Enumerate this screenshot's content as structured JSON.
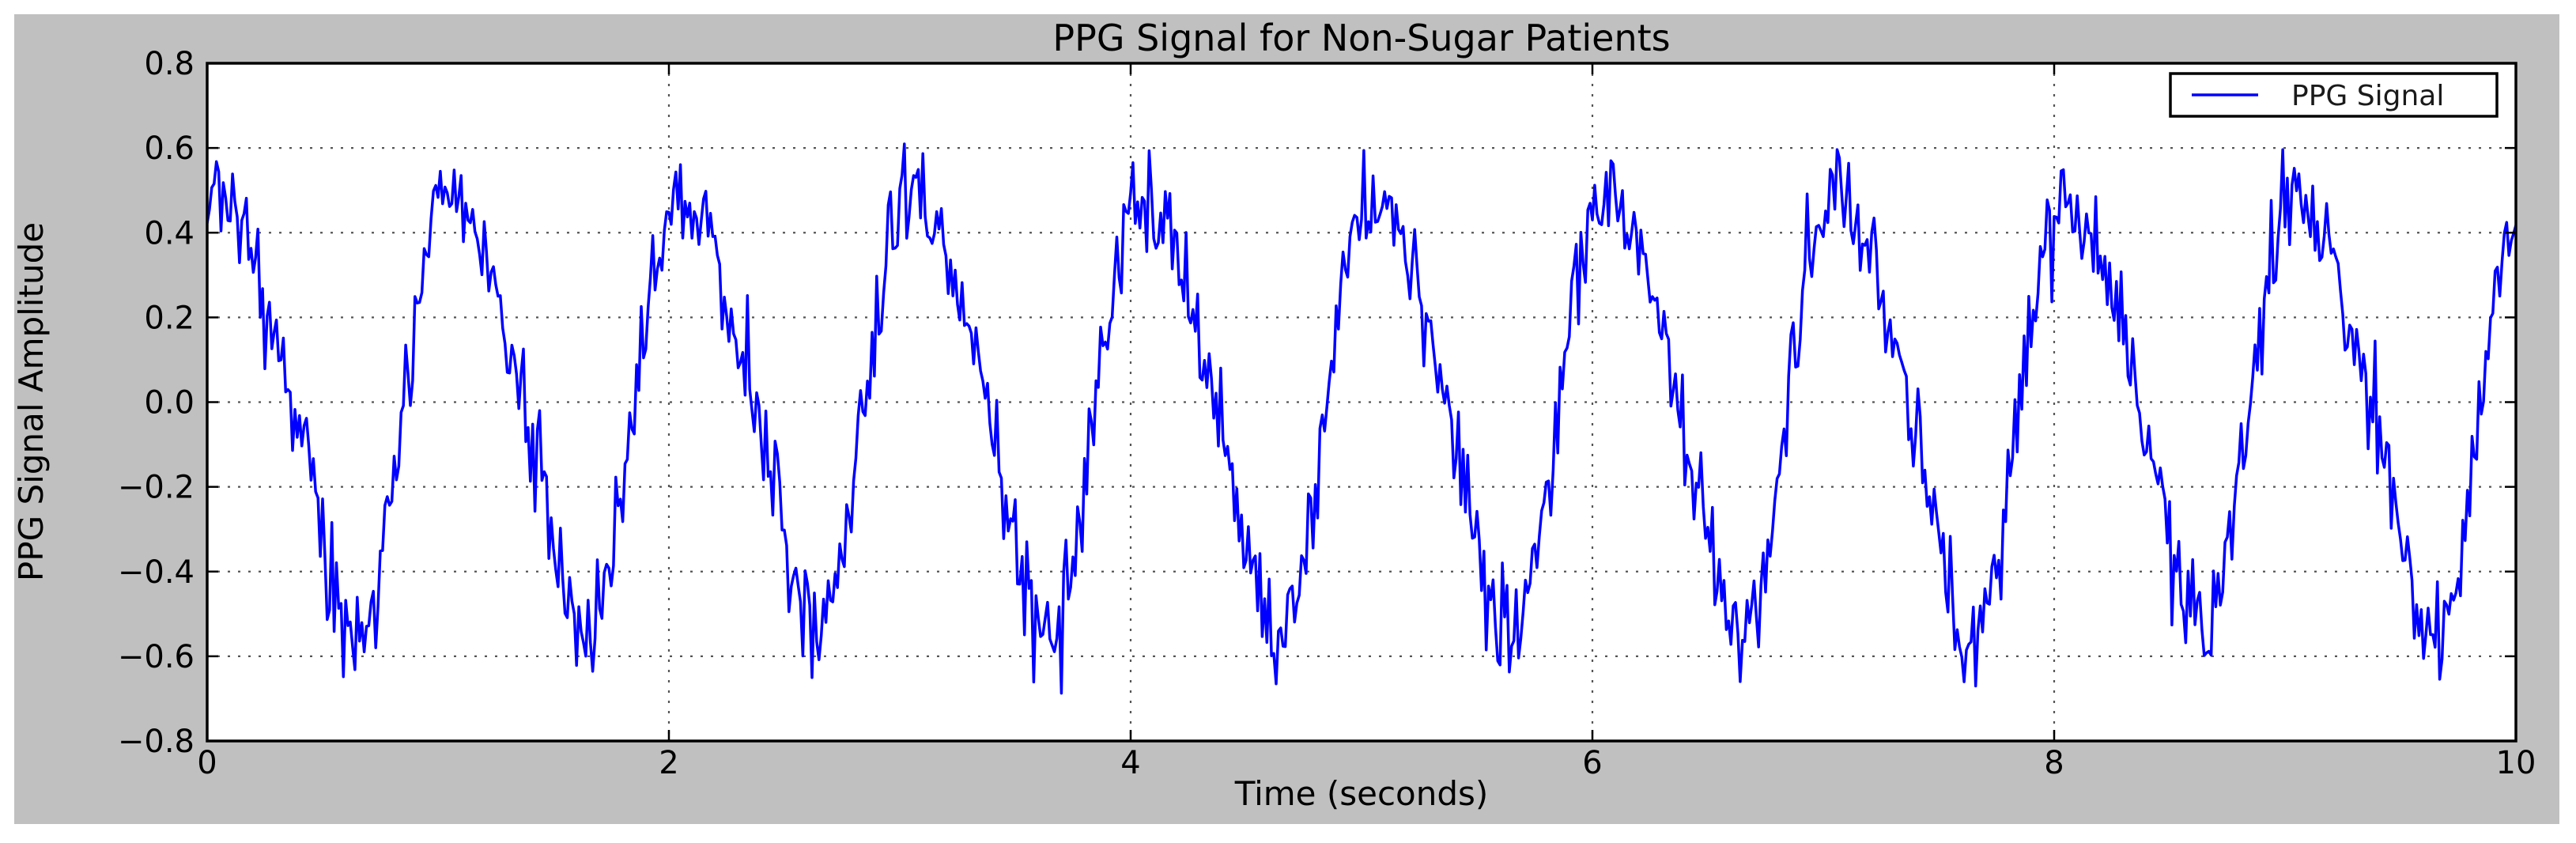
{
  "figure": {
    "facecolor": "#c0c0c0",
    "plot_facecolor": "#ffffff",
    "spine_color": "#000000",
    "tick_color": "#000000",
    "text_color": "#000000"
  },
  "chart_data": {
    "type": "line",
    "title": "PPG Signal for Non-Sugar Patients",
    "xlabel": "Time (seconds)",
    "ylabel": "PPG Signal Amplitude",
    "xlim": [
      0,
      10
    ],
    "ylim": [
      -0.8,
      0.8
    ],
    "xticks": {
      "values": [
        0,
        2,
        4,
        6,
        8,
        10
      ],
      "labels": [
        "0",
        "2",
        "4",
        "6",
        "8",
        "10"
      ]
    },
    "yticks": {
      "values": [
        0.8,
        0.6,
        0.4,
        0.2,
        0.0,
        -0.2,
        -0.4,
        -0.6,
        -0.8
      ],
      "labels": [
        "0.8",
        "0.6",
        "0.4",
        "0.2",
        "0.0",
        "−0.2",
        "−0.4",
        "−0.6",
        "−0.8"
      ]
    },
    "grid": {
      "show": true,
      "axis": "both",
      "linestyle": "dotted",
      "color": "#555555"
    },
    "legend": {
      "label": "PPG Signal",
      "loc": "upper right",
      "frame_color": "#000000",
      "background": "#ffffff"
    },
    "series": [
      {
        "name": "PPG Signal",
        "color": "#0000ff",
        "linewidth": 3.5,
        "generator": {
          "kind": "noisy_harmonic_sine",
          "duration_s": 10,
          "sample_rate_hz": 100,
          "components": [
            {
              "amplitude": 0.5,
              "frequency_hz": 1.0,
              "phase_rad": 0.9
            },
            {
              "amplitude": 0.08,
              "frequency_hz": 2.0,
              "phase_rad": 2.2
            }
          ],
          "noise": {
            "type": "gaussian",
            "sigma": 0.06,
            "seed": 20
          },
          "envelope_observed": {
            "typical_peak": 0.55,
            "max_peak": 0.7,
            "typical_trough": -0.55,
            "min_trough": -0.7,
            "cycles_visible": 10
          }
        }
      }
    ]
  }
}
